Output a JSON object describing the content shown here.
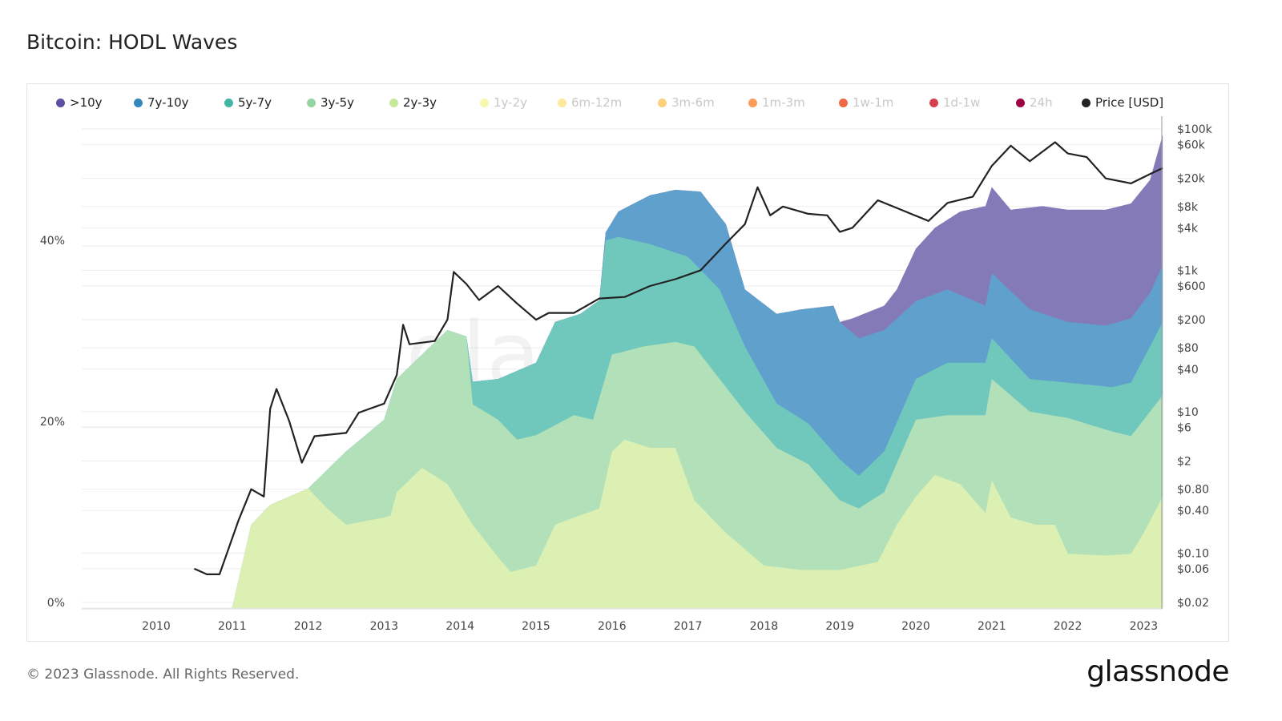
{
  "title": "Bitcoin: HODL Waves",
  "footer": "© 2023 Glassnode. All Rights Reserved.",
  "logo": "glassnode",
  "watermark": "glassnode",
  "legend": [
    {
      "label": ">10y",
      "color": "#5e4fa2",
      "active": true
    },
    {
      "label": "7y-10y",
      "color": "#3288bd",
      "active": true
    },
    {
      "label": "5y-7y",
      "color": "#44b4a4",
      "active": true
    },
    {
      "label": "3y-5y",
      "color": "#93d4a0",
      "active": true
    },
    {
      "label": "2y-3y",
      "color": "#c6e89a",
      "active": true
    },
    {
      "label": "1y-2y",
      "color": "#f6f8b0",
      "active": false
    },
    {
      "label": "6m-12m",
      "color": "#fde99a",
      "active": false
    },
    {
      "label": "3m-6m",
      "color": "#fdd07e",
      "active": false
    },
    {
      "label": "1m-3m",
      "color": "#fa9c5a",
      "active": false
    },
    {
      "label": "1w-1m",
      "color": "#ee6a45",
      "active": false
    },
    {
      "label": "1d-1w",
      "color": "#d7404f",
      "active": false
    },
    {
      "label": "24h",
      "color": "#9e0142",
      "active": false
    },
    {
      "label": "Price [USD]",
      "color": "#222222",
      "active": true
    }
  ],
  "chart_data": {
    "type": "area",
    "stacked": true,
    "title": "Bitcoin: HODL Waves",
    "x_ticks": [
      "2010",
      "2011",
      "2012",
      "2013",
      "2014",
      "2015",
      "2016",
      "2017",
      "2018",
      "2019",
      "2020",
      "2021",
      "2022",
      "2023"
    ],
    "x_range": [
      "2009-01",
      "2023-04"
    ],
    "y_left": {
      "ticks": [
        "0%",
        "20%",
        "40%"
      ],
      "range": [
        0,
        54.3
      ],
      "unit": "%"
    },
    "y_right": {
      "scale": "log",
      "ticks": [
        "$100k",
        "$60k",
        "$20k",
        "$8k",
        "$4k",
        "$1k",
        "$600",
        "$200",
        "$80",
        "$40",
        "$10",
        "$6",
        "$2",
        "$0.80",
        "$0.40",
        "$0.10",
        "$0.06",
        "$0.02"
      ],
      "tick_values": [
        100000,
        60000,
        20000,
        8000,
        4000,
        1000,
        600,
        200,
        80,
        40,
        10,
        6,
        2,
        0.8,
        0.4,
        0.1,
        0.06,
        0.02
      ],
      "range": [
        0.02,
        100000
      ]
    },
    "grid": true,
    "legend_position": "top",
    "series_note_cumulative": "values are stacked cumulative top (%)",
    "series": [
      {
        "name": "2y-3y",
        "fill": "#dcf0b3",
        "points": [
          [
            "2011-01",
            0
          ],
          [
            "2011-04",
            9.2
          ],
          [
            "2011-07",
            11.4
          ],
          [
            "2012-01",
            13.2
          ],
          [
            "2012-04",
            11
          ],
          [
            "2012-07",
            9.2
          ],
          [
            "2013-01",
            10
          ],
          [
            "2013-02",
            10.2
          ],
          [
            "2013-03",
            12.8
          ],
          [
            "2013-07",
            15.5
          ],
          [
            "2013-11",
            13.7
          ],
          [
            "2014-03",
            9.2
          ],
          [
            "2014-07",
            5.6
          ],
          [
            "2014-09",
            4
          ],
          [
            "2015-01",
            4.7
          ],
          [
            "2015-04",
            9.2
          ],
          [
            "2015-07",
            10
          ],
          [
            "2015-11",
            11
          ],
          [
            "2016-01",
            17.3
          ],
          [
            "2016-03",
            18.6
          ],
          [
            "2016-07",
            17.7
          ],
          [
            "2016-11",
            17.7
          ],
          [
            "2017-02",
            11.9
          ],
          [
            "2017-07",
            8.3
          ],
          [
            "2018-01",
            4.7
          ],
          [
            "2018-07",
            4.2
          ],
          [
            "2019-01",
            4.2
          ],
          [
            "2019-07",
            5.1
          ],
          [
            "2019-10",
            9.2
          ],
          [
            "2020-01",
            12.3
          ],
          [
            "2020-04",
            14.7
          ],
          [
            "2020-08",
            13.7
          ],
          [
            "2020-12",
            10.5
          ],
          [
            "2021-01",
            14.1
          ],
          [
            "2021-04",
            10
          ],
          [
            "2021-08",
            9.2
          ],
          [
            "2021-11",
            9.2
          ],
          [
            "2022-01",
            6
          ],
          [
            "2022-07",
            5.8
          ],
          [
            "2022-11",
            6
          ],
          [
            "2023-01",
            8.3
          ],
          [
            "2023-04",
            12.3
          ]
        ]
      },
      {
        "name": "3y-5y",
        "fill": "#b1e0b9",
        "points": [
          [
            "2012-01",
            13.2
          ],
          [
            "2012-07",
            17.3
          ],
          [
            "2013-01",
            20.8
          ],
          [
            "2013-03",
            25.3
          ],
          [
            "2013-07",
            28
          ],
          [
            "2013-11",
            30.7
          ],
          [
            "2014-02",
            30
          ],
          [
            "2014-03",
            22.5
          ],
          [
            "2014-07",
            20.8
          ],
          [
            "2014-10",
            18.6
          ],
          [
            "2015-01",
            19.1
          ],
          [
            "2015-07",
            21.3
          ],
          [
            "2015-10",
            20.8
          ],
          [
            "2016-01",
            28
          ],
          [
            "2016-06",
            28.9
          ],
          [
            "2016-11",
            29.4
          ],
          [
            "2017-02",
            28.9
          ],
          [
            "2017-06",
            25.3
          ],
          [
            "2017-10",
            21.7
          ],
          [
            "2018-03",
            17.7
          ],
          [
            "2018-08",
            15.9
          ],
          [
            "2019-01",
            11.9
          ],
          [
            "2019-04",
            11
          ],
          [
            "2019-08",
            12.8
          ],
          [
            "2020-01",
            20.8
          ],
          [
            "2020-06",
            21.3
          ],
          [
            "2020-12",
            21.3
          ],
          [
            "2021-01",
            25.3
          ],
          [
            "2021-07",
            21.7
          ],
          [
            "2022-01",
            21
          ],
          [
            "2022-08",
            19.5
          ],
          [
            "2022-11",
            19
          ],
          [
            "2023-02",
            21.7
          ],
          [
            "2023-04",
            23.5
          ]
        ]
      },
      {
        "name": "5y-7y",
        "fill": "#70c8bd",
        "points": [
          [
            "2014-02",
            30
          ],
          [
            "2014-03",
            25
          ],
          [
            "2014-07",
            25.3
          ],
          [
            "2015-01",
            27.1
          ],
          [
            "2015-04",
            31.6
          ],
          [
            "2015-08",
            32.5
          ],
          [
            "2015-11",
            34
          ],
          [
            "2015-12",
            40.6
          ],
          [
            "2016-02",
            41
          ],
          [
            "2016-07",
            40.2
          ],
          [
            "2017-01",
            38.8
          ],
          [
            "2017-06",
            35.2
          ],
          [
            "2017-10",
            28.9
          ],
          [
            "2018-03",
            22.6
          ],
          [
            "2018-08",
            20.4
          ],
          [
            "2019-01",
            16.4
          ],
          [
            "2019-04",
            14.6
          ],
          [
            "2019-08",
            17.3
          ],
          [
            "2020-01",
            25.3
          ],
          [
            "2020-06",
            27.1
          ],
          [
            "2020-12",
            27.1
          ],
          [
            "2021-01",
            29.8
          ],
          [
            "2021-07",
            25.3
          ],
          [
            "2022-01",
            24.9
          ],
          [
            "2022-08",
            24.4
          ],
          [
            "2022-11",
            24.9
          ],
          [
            "2023-02",
            28.9
          ],
          [
            "2023-04",
            31.6
          ]
        ]
      },
      {
        "name": "7y-10y",
        "fill": "#5fa0cc",
        "points": [
          [
            "2015-11",
            34
          ],
          [
            "2015-12",
            41.5
          ],
          [
            "2016-02",
            43.8
          ],
          [
            "2016-07",
            45.6
          ],
          [
            "2016-11",
            46.2
          ],
          [
            "2017-03",
            46
          ],
          [
            "2017-07",
            42.4
          ],
          [
            "2017-10",
            35.2
          ],
          [
            "2018-03",
            32.5
          ],
          [
            "2018-07",
            33
          ],
          [
            "2018-12",
            33.4
          ],
          [
            "2019-01",
            31.6
          ],
          [
            "2019-04",
            29.8
          ],
          [
            "2019-08",
            30.7
          ],
          [
            "2020-01",
            33.9
          ],
          [
            "2020-06",
            35.2
          ],
          [
            "2020-12",
            33.4
          ],
          [
            "2021-01",
            37
          ],
          [
            "2021-07",
            33
          ],
          [
            "2022-01",
            31.6
          ],
          [
            "2022-07",
            31.2
          ],
          [
            "2022-11",
            32
          ],
          [
            "2023-02",
            34.8
          ],
          [
            "2023-04",
            37.9
          ]
        ]
      },
      {
        "name": ">10y",
        "fill": "#857ab8",
        "points": [
          [
            "2019-01",
            31.6
          ],
          [
            "2019-03",
            32
          ],
          [
            "2019-08",
            33.4
          ],
          [
            "2019-10",
            35.2
          ],
          [
            "2020-01",
            39.7
          ],
          [
            "2020-04",
            42
          ],
          [
            "2020-08",
            43.8
          ],
          [
            "2020-12",
            44.4
          ],
          [
            "2021-01",
            46.5
          ],
          [
            "2021-04",
            44
          ],
          [
            "2021-09",
            44.4
          ],
          [
            "2022-01",
            44
          ],
          [
            "2022-07",
            44
          ],
          [
            "2022-11",
            44.7
          ],
          [
            "2023-02",
            47.3
          ],
          [
            "2023-04",
            52.3
          ]
        ]
      }
    ],
    "price": {
      "name": "Price [USD]",
      "color": "#222222",
      "points": [
        [
          "2010-07",
          0.06
        ],
        [
          "2010-09",
          0.05
        ],
        [
          "2010-11",
          0.05
        ],
        [
          "2011-02",
          0.29
        ],
        [
          "2011-04",
          0.8
        ],
        [
          "2011-06",
          0.63
        ],
        [
          "2011-07",
          11
        ],
        [
          "2011-08",
          21
        ],
        [
          "2011-10",
          7.4
        ],
        [
          "2011-12",
          1.9
        ],
        [
          "2012-02",
          4.5
        ],
        [
          "2012-07",
          5
        ],
        [
          "2012-09",
          9.7
        ],
        [
          "2013-01",
          13
        ],
        [
          "2013-03",
          33
        ],
        [
          "2013-04",
          170
        ],
        [
          "2013-05",
          90
        ],
        [
          "2013-09",
          100
        ],
        [
          "2013-11",
          200
        ],
        [
          "2013-12",
          950
        ],
        [
          "2014-02",
          640
        ],
        [
          "2014-04",
          380
        ],
        [
          "2014-07",
          600
        ],
        [
          "2014-10",
          340
        ],
        [
          "2015-01",
          200
        ],
        [
          "2015-03",
          250
        ],
        [
          "2015-07",
          250
        ],
        [
          "2015-11",
          400
        ],
        [
          "2016-03",
          420
        ],
        [
          "2016-07",
          600
        ],
        [
          "2016-11",
          750
        ],
        [
          "2017-03",
          1000
        ],
        [
          "2017-07",
          2400
        ],
        [
          "2017-10",
          4500
        ],
        [
          "2017-12",
          15000
        ],
        [
          "2018-02",
          6000
        ],
        [
          "2018-04",
          8000
        ],
        [
          "2018-08",
          6300
        ],
        [
          "2018-11",
          6000
        ],
        [
          "2019-01",
          3500
        ],
        [
          "2019-03",
          4000
        ],
        [
          "2019-07",
          9800
        ],
        [
          "2019-11",
          7000
        ],
        [
          "2020-03",
          5000
        ],
        [
          "2020-06",
          9000
        ],
        [
          "2020-10",
          11000
        ],
        [
          "2021-01",
          30000
        ],
        [
          "2021-04",
          58000
        ],
        [
          "2021-07",
          35000
        ],
        [
          "2021-11",
          65000
        ],
        [
          "2022-01",
          45000
        ],
        [
          "2022-04",
          40000
        ],
        [
          "2022-07",
          20000
        ],
        [
          "2022-11",
          17000
        ],
        [
          "2023-02",
          23000
        ],
        [
          "2023-04",
          28000
        ]
      ]
    }
  }
}
